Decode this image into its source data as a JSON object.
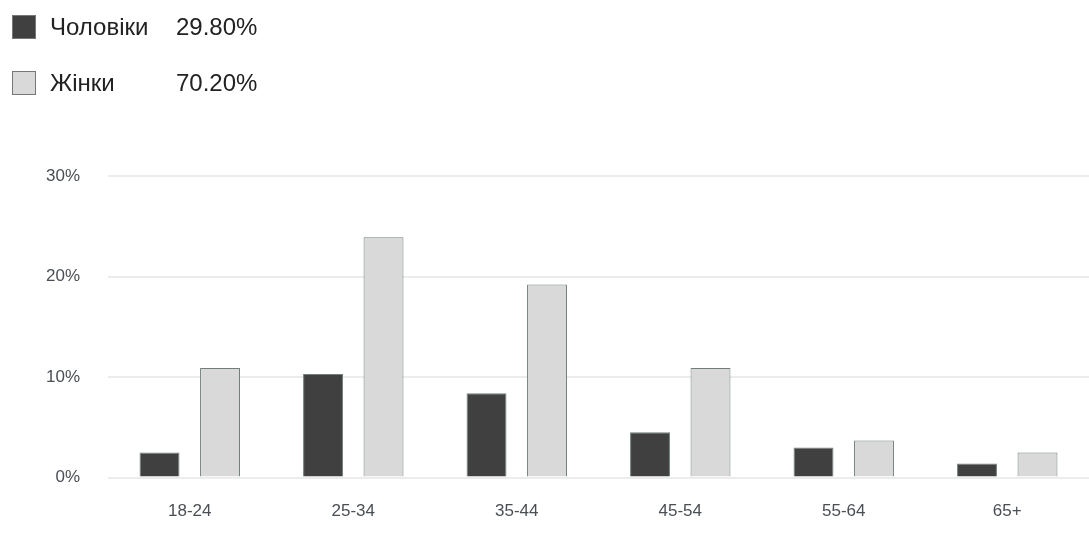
{
  "chart_data": {
    "type": "bar",
    "categories": [
      "18-24",
      "25-34",
      "35-44",
      "45-54",
      "55-64",
      "65+"
    ],
    "series": [
      {
        "name": "Чоловіки",
        "color": "#404040",
        "values": [
          2.5,
          10.3,
          8.4,
          4.5,
          3.0,
          1.4
        ]
      },
      {
        "name": "Жінки",
        "color": "#d9d9d9",
        "values": [
          10.9,
          23.9,
          19.2,
          10.9,
          3.7,
          2.5
        ]
      }
    ],
    "ylim": [
      0,
      30
    ],
    "yticks": [
      {
        "value": 0,
        "label": "0%"
      },
      {
        "value": 10,
        "label": "10%"
      },
      {
        "value": 20,
        "label": "20%"
      },
      {
        "value": 30,
        "label": "30%"
      }
    ],
    "grid": "y",
    "legend": "top left",
    "annotations": [
      "29.80%",
      "70.20%"
    ]
  }
}
